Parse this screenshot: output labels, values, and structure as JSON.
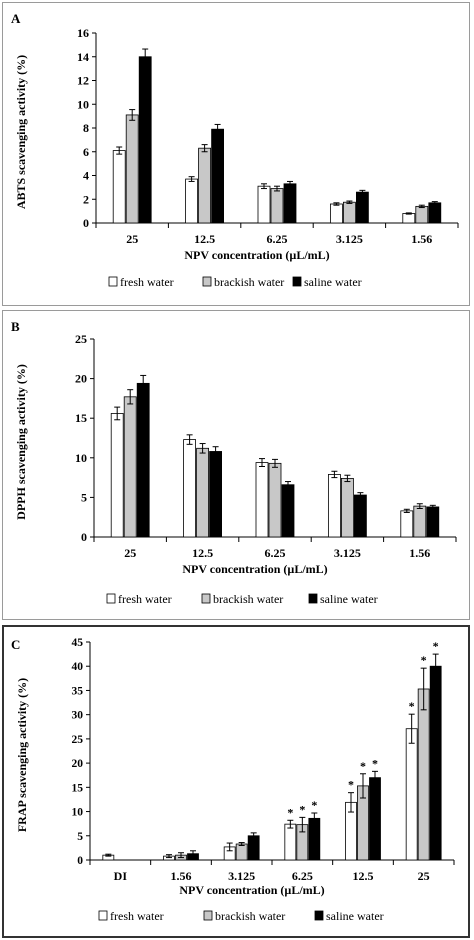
{
  "chart_data": [
    {
      "panel_label": "A",
      "type": "bar",
      "ylabel": "ABTS scavenging activity (%)",
      "xlabel": "NPV concentration (µL/mL)",
      "categories": [
        "25",
        "12.5",
        "6.25",
        "3.125",
        "1.56"
      ],
      "ylim": [
        0,
        16
      ],
      "yticks": [
        "0",
        "2",
        "4",
        "6",
        "8",
        "10",
        "12",
        "14",
        "16"
      ],
      "series": [
        {
          "name": "fresh water",
          "color": "#ffffff",
          "values": [
            6.1,
            3.7,
            3.1,
            1.6,
            0.8
          ],
          "errors": [
            0.3,
            0.2,
            0.2,
            0.1,
            0.05
          ]
        },
        {
          "name": "brackish water",
          "color": "#c8c8c8",
          "values": [
            9.1,
            6.3,
            2.9,
            1.75,
            1.4
          ],
          "errors": [
            0.45,
            0.3,
            0.2,
            0.1,
            0.1
          ]
        },
        {
          "name": "saline water",
          "color": "#000000",
          "values": [
            14.0,
            7.9,
            3.3,
            2.6,
            1.7
          ],
          "errors": [
            0.65,
            0.4,
            0.2,
            0.15,
            0.1
          ]
        }
      ],
      "significance": [
        [],
        [],
        [],
        [],
        []
      ],
      "legend_position": "bottom"
    },
    {
      "panel_label": "B",
      "type": "bar",
      "ylabel": "DPPH scavenging activity (%)",
      "xlabel": "NPV concentration (µL/mL)",
      "categories": [
        "25",
        "12.5",
        "6.25",
        "3.125",
        "1.56"
      ],
      "ylim": [
        0,
        25
      ],
      "yticks": [
        "0",
        "5",
        "10",
        "15",
        "20",
        "25"
      ],
      "series": [
        {
          "name": "fresh water",
          "color": "#ffffff",
          "values": [
            15.6,
            12.3,
            9.4,
            7.9,
            3.3
          ],
          "errors": [
            0.8,
            0.6,
            0.5,
            0.4,
            0.2
          ]
        },
        {
          "name": "brackish water",
          "color": "#c8c8c8",
          "values": [
            17.7,
            11.2,
            9.3,
            7.4,
            3.9
          ],
          "errors": [
            0.9,
            0.6,
            0.5,
            0.4,
            0.3
          ]
        },
        {
          "name": "saline water",
          "color": "#000000",
          "values": [
            19.4,
            10.8,
            6.6,
            5.3,
            3.8
          ],
          "errors": [
            1.0,
            0.6,
            0.4,
            0.3,
            0.2
          ]
        }
      ],
      "significance": [
        [],
        [],
        [],
        [],
        []
      ],
      "legend_position": "bottom"
    },
    {
      "panel_label": "C",
      "type": "bar",
      "ylabel": "FRAP scavenging activity (%)",
      "xlabel": "NPV concentration (µL/mL)",
      "categories": [
        "DI",
        "1.56",
        "3.125",
        "6.25",
        "12.5",
        "25"
      ],
      "ylim": [
        0,
        45
      ],
      "yticks": [
        "0",
        "5",
        "10",
        "15",
        "20",
        "25",
        "30",
        "35",
        "40",
        "45"
      ],
      "series": [
        {
          "name": "fresh water",
          "color": "#ffffff",
          "values": [
            1.0,
            0.8,
            2.7,
            7.4,
            11.9,
            27.1
          ],
          "errors": [
            0.2,
            0.3,
            0.8,
            0.8,
            2.0,
            3.0
          ]
        },
        {
          "name": "brackish water",
          "color": "#c8c8c8",
          "values": [
            0,
            1.0,
            3.3,
            7.3,
            15.3,
            35.3
          ],
          "errors": [
            0,
            0.5,
            0.3,
            1.5,
            2.5,
            4.3
          ]
        },
        {
          "name": "saline water",
          "color": "#000000",
          "values": [
            0,
            1.3,
            5.0,
            8.6,
            17.0,
            40.0
          ],
          "errors": [
            0,
            0.6,
            0.6,
            1.1,
            1.3,
            2.5
          ]
        }
      ],
      "significance": [
        [],
        [],
        [],
        [
          "*",
          "*",
          "*"
        ],
        [
          "*",
          "*",
          "*"
        ],
        [
          "*",
          "*",
          "*"
        ]
      ],
      "legend_position": "bottom"
    }
  ]
}
